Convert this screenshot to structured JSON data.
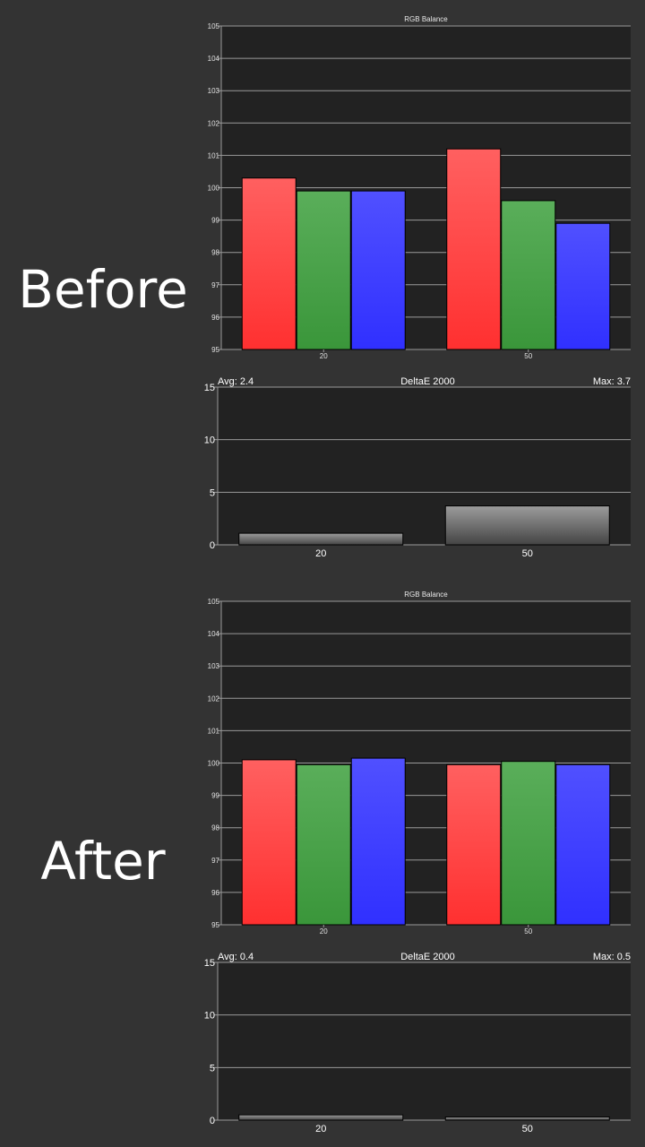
{
  "labels": {
    "before": "Before",
    "after": "After"
  },
  "colors": {
    "page_bg": "#333333",
    "plot_bg": "#222222",
    "grid": "#9a9a9a",
    "red": "#ff4040",
    "green": "#45a045",
    "blue": "#4040ff"
  },
  "chart_data": [
    {
      "id": "rgb-before",
      "type": "bar",
      "title": "RGB Balance",
      "categories": [
        "20",
        "50"
      ],
      "series": [
        {
          "color": "red",
          "values": [
            100.3,
            101.2
          ]
        },
        {
          "color": "green",
          "values": [
            99.9,
            99.6
          ]
        },
        {
          "color": "blue",
          "values": [
            99.9,
            98.9
          ]
        }
      ],
      "ylim": [
        95,
        105
      ],
      "yticks": [
        "95",
        "96",
        "97",
        "98",
        "99",
        "100",
        "101",
        "102",
        "103",
        "104",
        "105"
      ],
      "grid": true
    },
    {
      "id": "de-before",
      "type": "bar",
      "title": "DeltaE 2000",
      "avg_label": "Avg: 2.4",
      "max_label": "Max: 3.7",
      "categories": [
        "20",
        "50"
      ],
      "values": [
        1.1,
        3.7
      ],
      "ylim": [
        0,
        15
      ],
      "yticks": [
        "0",
        "5",
        "10",
        "15"
      ],
      "grid": true
    },
    {
      "id": "rgb-after",
      "type": "bar",
      "title": "RGB Balance",
      "categories": [
        "20",
        "50"
      ],
      "series": [
        {
          "color": "red",
          "values": [
            100.1,
            99.95
          ]
        },
        {
          "color": "green",
          "values": [
            99.95,
            100.05
          ]
        },
        {
          "color": "blue",
          "values": [
            100.15,
            99.95
          ]
        }
      ],
      "ylim": [
        95,
        105
      ],
      "yticks": [
        "95",
        "96",
        "97",
        "98",
        "99",
        "100",
        "101",
        "102",
        "103",
        "104",
        "105"
      ],
      "grid": true
    },
    {
      "id": "de-after",
      "type": "bar",
      "title": "DeltaE 2000",
      "avg_label": "Avg: 0.4",
      "max_label": "Max: 0.5",
      "categories": [
        "20",
        "50"
      ],
      "values": [
        0.5,
        0.3
      ],
      "ylim": [
        0,
        15
      ],
      "yticks": [
        "0",
        "5",
        "10",
        "15"
      ],
      "grid": true
    }
  ]
}
